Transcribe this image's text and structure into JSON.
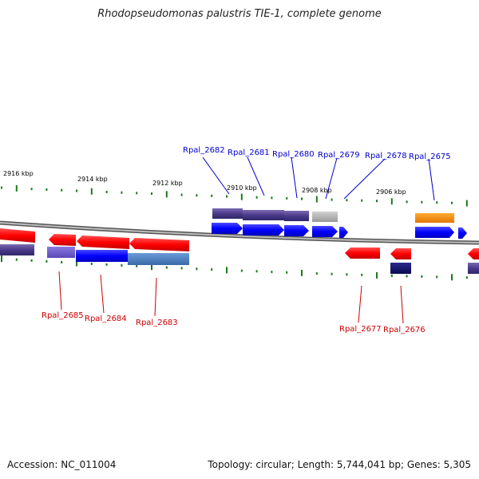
{
  "title": "Rhodopseudomonas palustris TIE-1, complete genome",
  "footer": {
    "accession": "Accession: NC_011004",
    "stats": "Topology: circular; Length: 5,744,041 bp; Genes: 5,305"
  },
  "colors": {
    "forward_gene": "#0000ff",
    "reverse_gene": "#ff0000",
    "forward_label": "#0000cc",
    "reverse_label": "#cc0000",
    "tick": "#1a7a1a",
    "backbone": "#888888"
  },
  "scale": {
    "ticks": [
      {
        "label": "2916 kbp"
      },
      {
        "label": "2914 kbp"
      },
      {
        "label": "2912 kbp"
      },
      {
        "label": "2910 kbp"
      },
      {
        "label": "2908 kbp"
      },
      {
        "label": "2906 kbp"
      }
    ]
  },
  "genes": [
    {
      "label": "Rpal_2682",
      "strand": "forward"
    },
    {
      "label": "Rpal_2681",
      "strand": "forward"
    },
    {
      "label": "Rpal_2680",
      "strand": "forward"
    },
    {
      "label": "Rpal_2679",
      "strand": "forward"
    },
    {
      "label": "Rpal_2678",
      "strand": "forward"
    },
    {
      "label": "Rpal_2675",
      "strand": "forward"
    },
    {
      "label": "Rpal_2685",
      "strand": "reverse"
    },
    {
      "label": "Rpal_2684",
      "strand": "reverse"
    },
    {
      "label": "Rpal_2683",
      "strand": "reverse"
    },
    {
      "label": "Rpal_2677",
      "strand": "reverse"
    },
    {
      "label": "Rpal_2676",
      "strand": "reverse"
    }
  ]
}
